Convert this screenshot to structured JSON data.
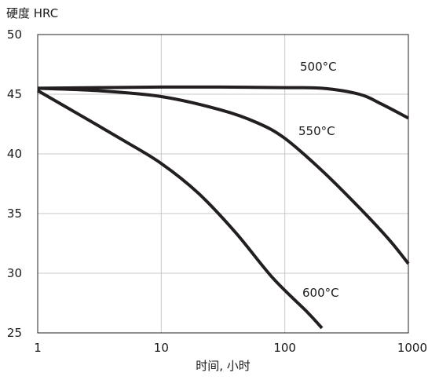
{
  "chart_data": {
    "type": "line",
    "ylabel": "硬度 HRC",
    "xlabel": "时间, 小时",
    "xscale": "log",
    "xlim": [
      1,
      1000
    ],
    "ylim": [
      25,
      50
    ],
    "grid": true,
    "x_ticks": [
      {
        "value": 1,
        "label": "1"
      },
      {
        "value": 10,
        "label": "10"
      },
      {
        "value": 100,
        "label": "100"
      },
      {
        "value": 1000,
        "label": "1000"
      }
    ],
    "y_ticks": [
      {
        "value": 50,
        "label": "50"
      },
      {
        "value": 45,
        "label": "45"
      },
      {
        "value": 40,
        "label": "40"
      },
      {
        "value": 35,
        "label": "35"
      },
      {
        "value": 30,
        "label": "30"
      },
      {
        "value": 25,
        "label": "25"
      }
    ],
    "line_color": "#231f20",
    "grid_color": "#c8c8c8",
    "series": [
      {
        "name": "500°C",
        "x": [
          1,
          3,
          10,
          30,
          100,
          200,
          400,
          600,
          1000
        ],
        "y": [
          45.5,
          45.55,
          45.6,
          45.6,
          45.55,
          45.5,
          45.0,
          44.2,
          43.0
        ]
      },
      {
        "name": "550°C",
        "x": [
          1,
          3,
          10,
          30,
          60,
          100,
          200,
          400,
          700,
          1000
        ],
        "y": [
          45.5,
          45.3,
          44.8,
          43.7,
          42.6,
          41.3,
          38.6,
          35.5,
          32.8,
          30.8
        ]
      },
      {
        "name": "600°C",
        "x": [
          1,
          2,
          5,
          10,
          20,
          40,
          80,
          150,
          200
        ],
        "y": [
          45.3,
          43.5,
          41.1,
          39.2,
          36.7,
          33.4,
          29.6,
          26.8,
          25.4
        ]
      }
    ]
  }
}
